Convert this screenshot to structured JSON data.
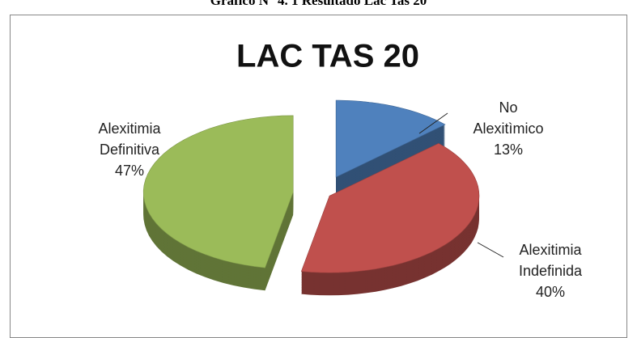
{
  "caption": "Gráfico N° 4. 1 Resultado Lac Tas 20",
  "chart_data": {
    "type": "pie",
    "title": "LAC TAS 20",
    "categories": [
      "No Alexitìmico",
      "Alexitimia Indefinida",
      "Alexitimia Definitiva"
    ],
    "values": [
      13,
      40,
      47
    ],
    "value_labels": [
      "13%",
      "40%",
      "47%"
    ],
    "colors": [
      "#4f81bd",
      "#c0504d",
      "#9bbb59"
    ]
  }
}
